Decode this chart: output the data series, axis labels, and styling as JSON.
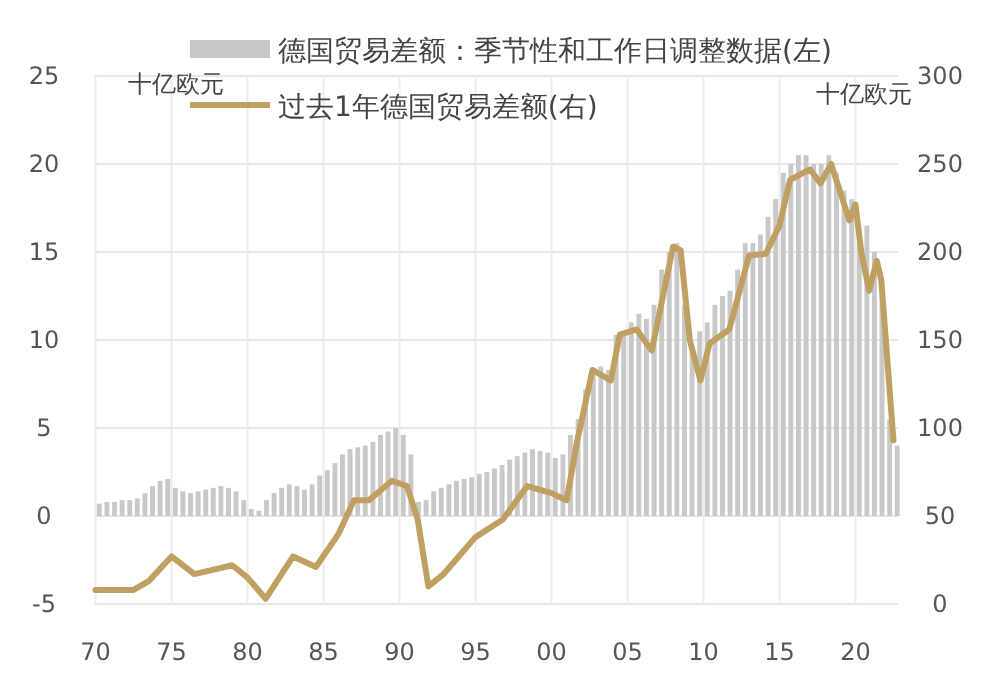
{
  "chart_data": {
    "type": "bar",
    "ylabel": "十亿欧元",
    "y2label": "十亿欧元",
    "xlim": [
      1969.9,
      2022.8
    ],
    "xticks": [
      {
        "value": 1970,
        "label": "70"
      },
      {
        "value": 1975,
        "label": "75"
      },
      {
        "value": 1980,
        "label": "80"
      },
      {
        "value": 1985,
        "label": "85"
      },
      {
        "value": 1990,
        "label": "90"
      },
      {
        "value": 1995,
        "label": "95"
      },
      {
        "value": 2000,
        "label": "00"
      },
      {
        "value": 2005,
        "label": "05"
      },
      {
        "value": 2010,
        "label": "10"
      },
      {
        "value": 2015,
        "label": "15"
      },
      {
        "value": 2020,
        "label": "20"
      }
    ],
    "ylim": [
      -5,
      25
    ],
    "yticks": [
      -5,
      0,
      5,
      10,
      15,
      20,
      25
    ],
    "y2lim": [
      0,
      300
    ],
    "y2ticks": [
      0,
      50,
      100,
      150,
      200,
      250,
      300
    ],
    "grid": true,
    "legend": "top",
    "series": [
      {
        "name": "德国贸易差额：季节性和工作日调整数据(左)",
        "color": "#c8c8c8",
        "x": [
          1970.25,
          1970.75,
          1971.25,
          1971.75,
          1972.25,
          1972.75,
          1973.25,
          1973.75,
          1974.25,
          1974.75,
          1975.25,
          1975.75,
          1976.25,
          1976.75,
          1977.25,
          1977.75,
          1978.25,
          1978.75,
          1979.25,
          1979.75,
          1980.25,
          1980.75,
          1981.25,
          1981.75,
          1982.25,
          1982.75,
          1983.25,
          1983.75,
          1984.25,
          1984.75,
          1985.25,
          1985.75,
          1986.25,
          1986.75,
          1987.25,
          1987.75,
          1988.25,
          1988.75,
          1989.25,
          1989.75,
          1990.25,
          1990.75,
          1991.25,
          1991.75,
          1992.25,
          1992.75,
          1993.25,
          1993.75,
          1994.25,
          1994.75,
          1995.25,
          1995.75,
          1996.25,
          1996.75,
          1997.25,
          1997.75,
          1998.25,
          1998.75,
          1999.25,
          1999.75,
          2000.25,
          2000.75,
          2001.25,
          2001.75,
          2002.25,
          2002.75,
          2003.25,
          2003.75,
          2004.25,
          2004.75,
          2005.25,
          2005.75,
          2006.25,
          2006.75,
          2007.25,
          2007.75,
          2008.25,
          2008.75,
          2009.25,
          2009.75,
          2010.25,
          2010.75,
          2011.25,
          2011.75,
          2012.25,
          2012.75,
          2013.25,
          2013.75,
          2014.25,
          2014.75,
          2015.25,
          2015.75,
          2016.25,
          2016.75,
          2017.25,
          2017.75,
          2018.25,
          2018.75,
          2019.25,
          2019.75,
          2020.25,
          2020.75,
          2021.25,
          2021.75,
          2022.25,
          2022.75
        ],
        "values": [
          0.7,
          0.8,
          0.8,
          0.9,
          0.9,
          1.0,
          1.3,
          1.7,
          2.0,
          2.1,
          1.6,
          1.4,
          1.3,
          1.4,
          1.5,
          1.6,
          1.7,
          1.6,
          1.4,
          0.9,
          0.4,
          0.3,
          0.9,
          1.3,
          1.6,
          1.8,
          1.7,
          1.5,
          1.8,
          2.3,
          2.6,
          3.0,
          3.5,
          3.8,
          3.9,
          4.0,
          4.2,
          4.6,
          4.8,
          5.0,
          4.6,
          3.5,
          0.8,
          0.9,
          1.4,
          1.6,
          1.8,
          2.0,
          2.1,
          2.2,
          2.4,
          2.5,
          2.7,
          2.9,
          3.2,
          3.4,
          3.6,
          3.8,
          3.7,
          3.6,
          3.3,
          3.5,
          4.6,
          5.5,
          7.2,
          8.0,
          8.5,
          8.3,
          10.3,
          10.5,
          11.0,
          11.5,
          11.2,
          12.0,
          14.0,
          15.0,
          15.5,
          12.0,
          9.5,
          10.5,
          11.0,
          12.0,
          12.5,
          12.8,
          14.0,
          15.5,
          15.5,
          16.0,
          17.0,
          18.0,
          19.5,
          20.0,
          20.5,
          20.5,
          20.0,
          20.0,
          20.5,
          19.5,
          18.5,
          18.0,
          15.5,
          16.5,
          15.0,
          13.0,
          5.5,
          4.0
        ]
      },
      {
        "name": "过去1年德国贸易差额(右)",
        "type": "line",
        "axis": "y2",
        "color": "#c0a062",
        "x": [
          1970,
          1972.5,
          1973.5,
          1975,
          1976.5,
          1979,
          1980,
          1981.2,
          1983,
          1984.5,
          1986,
          1987,
          1988,
          1989.5,
          1990.5,
          1991.2,
          1991.9,
          1992.9,
          1995,
          1996.8,
          1998.4,
          2000,
          2001,
          2001.7,
          2002.7,
          2003.9,
          2004.5,
          2005.6,
          2006.6,
          2008,
          2008.5,
          2009.1,
          2009.8,
          2010.4,
          2011.7,
          2013,
          2014.1,
          2015,
          2015.7,
          2017,
          2017.7,
          2018.4,
          2019.6,
          2020,
          2020.4,
          2020.9,
          2021.4,
          2021.7,
          2022.5
        ],
        "values": [
          8,
          8,
          13,
          27,
          17,
          22,
          15,
          3,
          27,
          21,
          40,
          59,
          59,
          70,
          67,
          48,
          10,
          17,
          38,
          48,
          67,
          63,
          59,
          93,
          133,
          127,
          153,
          156,
          144,
          203,
          201,
          150,
          127,
          148,
          156,
          198,
          199,
          215,
          241,
          247,
          239,
          250,
          218,
          227,
          199,
          178,
          195,
          184,
          93
        ]
      }
    ]
  }
}
